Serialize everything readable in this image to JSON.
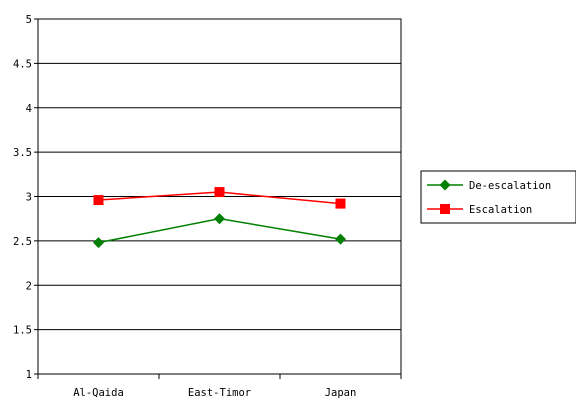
{
  "chart_data": {
    "type": "line",
    "categories": [
      "Al-Qaida",
      "East-Timor",
      "Japan"
    ],
    "series": [
      {
        "name": "De-escalation",
        "values": [
          2.48,
          2.75,
          2.52
        ],
        "color": "#008000",
        "marker": "diamond"
      },
      {
        "name": "Escalation",
        "values": [
          2.96,
          3.05,
          2.92
        ],
        "color": "#ff0000",
        "marker": "square"
      }
    ],
    "ylim": [
      1,
      5
    ],
    "yticks": [
      "1",
      "1.5",
      "2",
      "2.5",
      "3",
      "3.5",
      "4",
      "4.5",
      "5"
    ],
    "grid": true,
    "legend_position": "right"
  }
}
